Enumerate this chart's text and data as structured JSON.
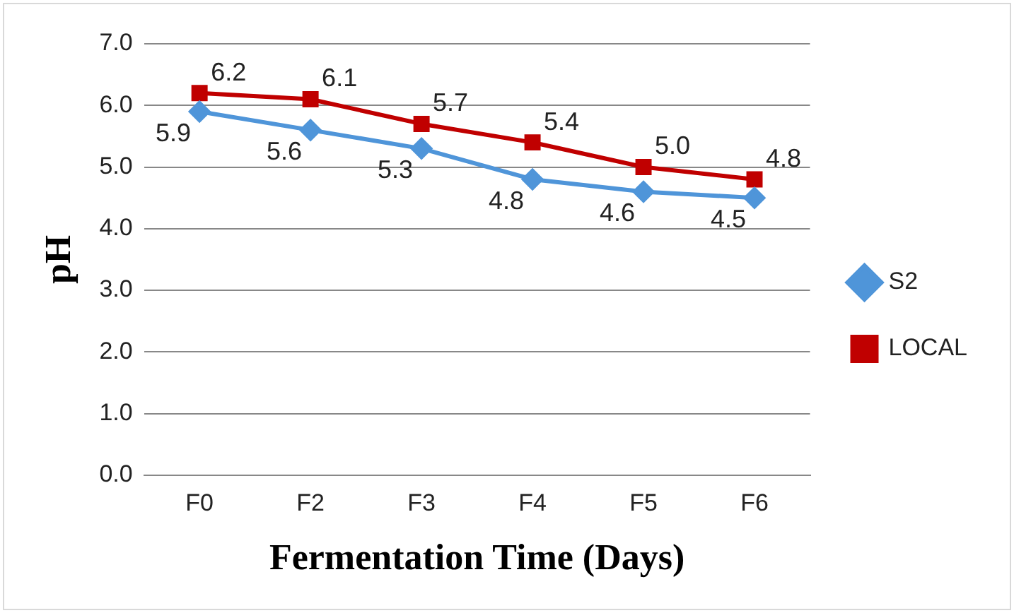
{
  "chart_data": {
    "type": "line",
    "xlabel": "Fermentation Time (Days)",
    "ylabel": "pH",
    "categories": [
      "F0",
      "F2",
      "F3",
      "F4",
      "F5",
      "F6"
    ],
    "series": [
      {
        "name": "S2",
        "color": "#4f95d9",
        "values": [
          5.9,
          5.6,
          5.3,
          4.8,
          4.6,
          4.5
        ],
        "value_labels": [
          "5.9",
          "5.6",
          "5.3",
          "4.8",
          "4.6",
          "4.5"
        ],
        "marker": "diamond"
      },
      {
        "name": "LOCAL",
        "color": "#c00000",
        "values": [
          6.2,
          6.1,
          5.7,
          5.4,
          5.0,
          4.8
        ],
        "value_labels": [
          "6.2",
          "6.1",
          "5.7",
          "5.4",
          "5.0",
          "4.8"
        ],
        "marker": "square"
      }
    ],
    "ylim": [
      0,
      7
    ],
    "yticks": [
      {
        "value": 0,
        "label": "0.0"
      },
      {
        "value": 1,
        "label": "1.0"
      },
      {
        "value": 2,
        "label": "2.0"
      },
      {
        "value": 3,
        "label": "3.0"
      },
      {
        "value": 4,
        "label": "4.0"
      },
      {
        "value": 5,
        "label": "5.0"
      },
      {
        "value": 6,
        "label": "6.0"
      },
      {
        "value": 7,
        "label": "7.0"
      }
    ],
    "grid": "y",
    "legend": "right",
    "line_style": "solid"
  }
}
